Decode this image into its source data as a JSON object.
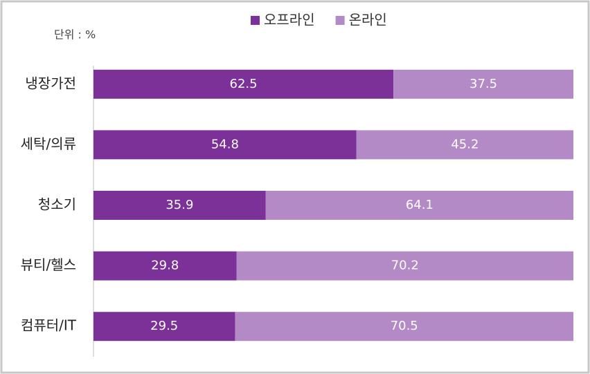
{
  "chart_data": {
    "type": "stacked_barh",
    "unit_label": "단위 : %",
    "categories": [
      "냉장가전",
      "세탁/의류",
      "청소기",
      "뷰티/헬스",
      "컴퓨터/IT"
    ],
    "series": [
      {
        "name": "오프라인",
        "color": "#7b3197",
        "values": [
          62.5,
          54.8,
          35.9,
          29.8,
          29.5
        ]
      },
      {
        "name": "온라인",
        "color": "#b48ac6",
        "values": [
          37.5,
          45.2,
          64.1,
          70.2,
          70.5
        ]
      }
    ],
    "xlim": [
      0,
      100
    ],
    "data_labels": true,
    "legend": "top"
  }
}
